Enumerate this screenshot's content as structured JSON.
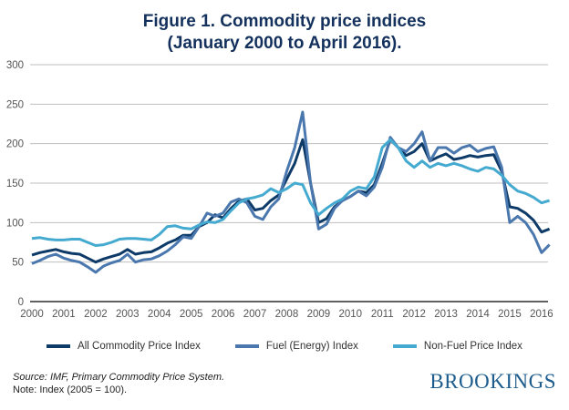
{
  "chart_data": {
    "type": "line",
    "title": [
      "Figure 1. Commodity price indices",
      "(January 2000 to April 2016)."
    ],
    "xlabel": "",
    "ylabel": "",
    "ylim": [
      0,
      300
    ],
    "yticks": [
      "0",
      "50",
      "100",
      "150",
      "200",
      "250",
      "300"
    ],
    "xticks": [
      "2000",
      "2001",
      "2002",
      "2003",
      "2004",
      "2005",
      "2006",
      "2007",
      "2008",
      "2009",
      "2010",
      "2011",
      "2012",
      "2013",
      "2014",
      "2015",
      "2016"
    ],
    "x_start": 2000,
    "x_step": 0.25,
    "grid": true,
    "legend_position": "bottom",
    "series": [
      {
        "name": "All Commodity Price Index",
        "color": "#0e3a68",
        "values": [
          59,
          62,
          64,
          66,
          63,
          61,
          60,
          55,
          50,
          54,
          57,
          60,
          66,
          60,
          62,
          63,
          68,
          74,
          78,
          84,
          84,
          95,
          100,
          110,
          106,
          118,
          127,
          130,
          116,
          118,
          128,
          135,
          155,
          175,
          205,
          150,
          100,
          105,
          120,
          128,
          133,
          140,
          138,
          148,
          175,
          205,
          195,
          185,
          190,
          200,
          178,
          183,
          187,
          180,
          182,
          185,
          183,
          185,
          186,
          165,
          120,
          118,
          112,
          103,
          88,
          92
        ]
      },
      {
        "name": "Fuel (Energy) Index",
        "color": "#4a78ae",
        "values": [
          48,
          52,
          57,
          60,
          55,
          52,
          50,
          44,
          37,
          45,
          49,
          52,
          60,
          50,
          53,
          54,
          58,
          64,
          72,
          82,
          80,
          95,
          112,
          108,
          112,
          126,
          130,
          125,
          108,
          104,
          120,
          130,
          165,
          195,
          240,
          150,
          92,
          98,
          118,
          128,
          133,
          140,
          134,
          145,
          170,
          208,
          195,
          190,
          200,
          215,
          178,
          195,
          195,
          188,
          195,
          198,
          190,
          194,
          196,
          170,
          100,
          108,
          100,
          85,
          62,
          72
        ]
      },
      {
        "name": "Non-Fuel Price Index",
        "color": "#45aad0",
        "values": [
          80,
          81,
          79,
          78,
          78,
          79,
          79,
          75,
          71,
          72,
          75,
          79,
          80,
          80,
          79,
          78,
          85,
          95,
          96,
          93,
          92,
          97,
          101,
          100,
          104,
          115,
          125,
          130,
          132,
          135,
          143,
          138,
          143,
          150,
          148,
          125,
          110,
          118,
          125,
          130,
          140,
          145,
          143,
          158,
          195,
          205,
          195,
          178,
          170,
          178,
          170,
          175,
          172,
          175,
          172,
          168,
          165,
          170,
          168,
          160,
          148,
          140,
          137,
          132,
          125,
          128
        ]
      }
    ]
  },
  "source": "Source: IMF, Primary Commodity Price System.",
  "note": "Note: Index (2005 = 100).",
  "logo": "BROOKINGS"
}
